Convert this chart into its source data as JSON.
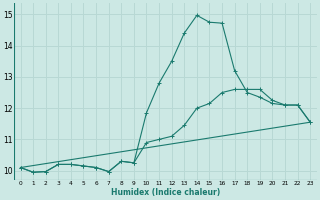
{
  "title": "",
  "xlabel": "Humidex (Indice chaleur)",
  "ylabel": "",
  "bg_color": "#cce8e4",
  "grid_color": "#b8d8d4",
  "line_color": "#1a7a6e",
  "xlim": [
    -0.5,
    23.5
  ],
  "ylim": [
    9.7,
    15.35
  ],
  "xticks": [
    0,
    1,
    2,
    3,
    4,
    5,
    6,
    7,
    8,
    9,
    10,
    11,
    12,
    13,
    14,
    15,
    16,
    17,
    18,
    19,
    20,
    21,
    22,
    23
  ],
  "yticks": [
    10,
    11,
    12,
    13,
    14,
    15
  ],
  "line1_x": [
    0,
    1,
    2,
    3,
    4,
    5,
    6,
    7,
    8,
    9,
    10,
    11,
    12,
    13,
    14,
    15,
    16,
    17,
    18,
    19,
    20,
    21,
    22,
    23
  ],
  "line1_y": [
    10.1,
    9.95,
    9.97,
    10.2,
    10.2,
    10.15,
    10.1,
    9.97,
    10.3,
    10.25,
    11.85,
    12.8,
    13.5,
    14.4,
    14.97,
    14.75,
    14.72,
    13.2,
    12.5,
    12.35,
    12.15,
    12.1,
    12.1,
    11.55
  ],
  "line2_x": [
    0,
    1,
    2,
    3,
    4,
    5,
    6,
    7,
    8,
    9,
    10,
    11,
    12,
    13,
    14,
    15,
    16,
    17,
    18,
    19,
    20,
    21,
    22,
    23
  ],
  "line2_y": [
    10.1,
    9.95,
    9.97,
    10.2,
    10.2,
    10.15,
    10.1,
    9.97,
    10.3,
    10.25,
    10.9,
    11.0,
    11.1,
    11.45,
    12.0,
    12.15,
    12.5,
    12.6,
    12.6,
    12.6,
    12.25,
    12.1,
    12.1,
    11.55
  ],
  "line3_x": [
    0,
    23
  ],
  "line3_y": [
    10.1,
    11.55
  ]
}
